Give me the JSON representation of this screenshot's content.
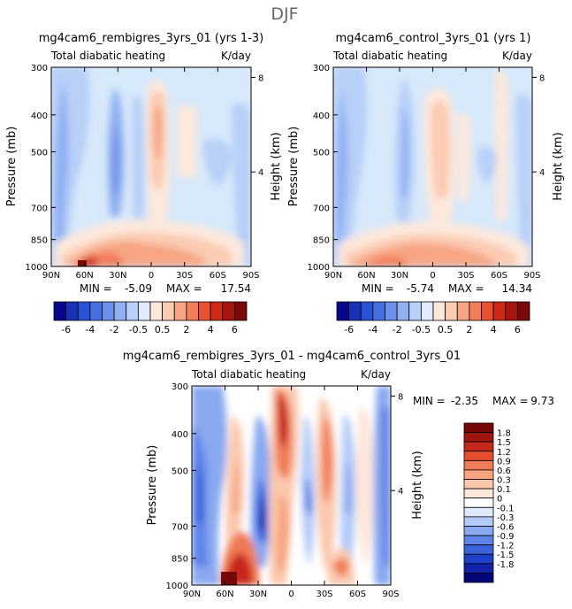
{
  "page_title": "DJF",
  "colors": {
    "panel_bg": "#d6e8fa",
    "positive": "#e0543a",
    "negative": "#3a64d8",
    "neutral": "#ffffff",
    "axis": "#000000"
  },
  "chart_data": [
    {
      "type": "heatmap",
      "id": "panel-a",
      "title": "mg4cam6_rembigres_3yrs_01 (yrs 1-3)",
      "subtitle_left": "Total diabatic heating",
      "subtitle_right": "K/day",
      "xlabel": "",
      "ylabel": "Pressure (mb)",
      "ylabel_right": "Height (km)",
      "x_ticks": [
        "90N",
        "60N",
        "30N",
        "0",
        "30S",
        "60S",
        "90S"
      ],
      "y_ticks": [
        "300",
        "400",
        "500",
        "700",
        "850",
        "1000"
      ],
      "y_ticks_right": [
        "8",
        "4"
      ],
      "xlim": [
        90,
        -90
      ],
      "ylim": [
        1000,
        300
      ],
      "min_label": "MIN =",
      "min_value": "-5.09",
      "max_label": "MAX =",
      "max_value": "17.54",
      "colorbar": {
        "orientation": "horizontal",
        "colors": [
          "#08088a",
          "#1632b8",
          "#2a52d6",
          "#4670e0",
          "#6a90ea",
          "#90b0f2",
          "#b8cff8",
          "#dfeafc",
          "#fde8dc",
          "#fbcbb2",
          "#f7a584",
          "#f17c5a",
          "#e85233",
          "#cf2a18",
          "#a81510",
          "#7a0808"
        ],
        "tick_labels": [
          "-6",
          "-4",
          "-2",
          "-0.5",
          "0.5",
          "2",
          "4",
          "6"
        ]
      }
    },
    {
      "type": "heatmap",
      "id": "panel-b",
      "title": "mg4cam6_control_3yrs_01 (yrs 1)",
      "subtitle_left": "Total diabatic heating",
      "subtitle_right": "K/day",
      "xlabel": "",
      "ylabel": "Pressure (mb)",
      "ylabel_right": "Height (km)",
      "x_ticks": [
        "90N",
        "60N",
        "30N",
        "0",
        "30S",
        "60S",
        "90S"
      ],
      "y_ticks": [
        "300",
        "400",
        "500",
        "700",
        "850",
        "1000"
      ],
      "y_ticks_right": [
        "8",
        "4"
      ],
      "xlim": [
        90,
        -90
      ],
      "ylim": [
        1000,
        300
      ],
      "min_label": "MIN =",
      "min_value": "-5.74",
      "max_label": "MAX =",
      "max_value": "14.34",
      "colorbar": {
        "orientation": "horizontal",
        "colors": [
          "#08088a",
          "#1632b8",
          "#2a52d6",
          "#4670e0",
          "#6a90ea",
          "#90b0f2",
          "#b8cff8",
          "#dfeafc",
          "#fde8dc",
          "#fbcbb2",
          "#f7a584",
          "#f17c5a",
          "#e85233",
          "#cf2a18",
          "#a81510",
          "#7a0808"
        ],
        "tick_labels": [
          "-6",
          "-4",
          "-2",
          "-0.5",
          "0.5",
          "2",
          "4",
          "6"
        ]
      }
    },
    {
      "type": "heatmap",
      "id": "panel-diff",
      "title": "mg4cam6_rembigres_3yrs_01 - mg4cam6_control_3yrs_01",
      "subtitle_left": "Total diabatic heating",
      "subtitle_right": "K/day",
      "xlabel": "",
      "ylabel": "Pressure (mb)",
      "ylabel_right": "Height (km)",
      "x_ticks": [
        "90N",
        "60N",
        "30N",
        "0",
        "30S",
        "60S",
        "90S"
      ],
      "y_ticks": [
        "300",
        "400",
        "500",
        "700",
        "850",
        "1000"
      ],
      "y_ticks_right": [
        "8",
        "4"
      ],
      "xlim": [
        90,
        -90
      ],
      "ylim": [
        1000,
        300
      ],
      "min_label": "MIN =",
      "min_value": "-2.35",
      "max_label": "MAX =",
      "max_value": "9.73",
      "colorbar": {
        "orientation": "vertical",
        "colors": [
          "#05057a",
          "#0f22a8",
          "#1d40c8",
          "#3a62dc",
          "#5e84e8",
          "#88a8f0",
          "#b4cbf8",
          "#dde8fc",
          "#ffffff",
          "#fde6da",
          "#fbc8ae",
          "#f7a47f",
          "#f07a55",
          "#e44e30",
          "#c8281a",
          "#a01410",
          "#760808"
        ],
        "tick_labels": [
          "-1.8",
          "-1.5",
          "-1.2",
          "-0.9",
          "-0.6",
          "-0.3",
          "-0.1",
          "0",
          "0.1",
          "0.3",
          "0.6",
          "0.9",
          "1.2",
          "1.5",
          "1.8"
        ]
      }
    }
  ]
}
